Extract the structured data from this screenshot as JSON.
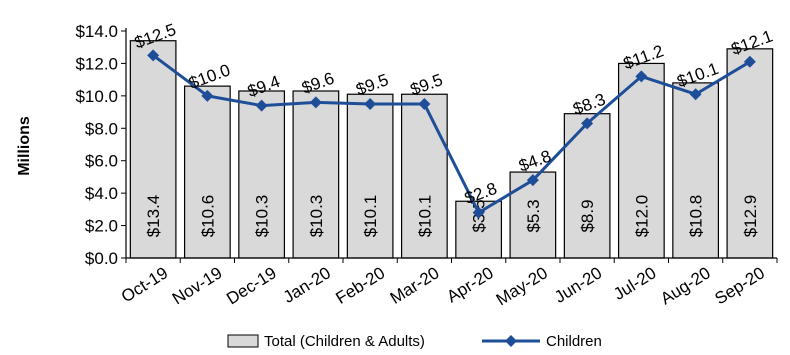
{
  "chart_data": {
    "type": "bar+line",
    "ylabel": "Millions",
    "ylim": [
      0,
      14
    ],
    "y_ticks": [
      "$0.0",
      "$2.0",
      "$4.0",
      "$6.0",
      "$8.0",
      "$10.0",
      "$12.0",
      "$14.0"
    ],
    "categories": [
      "Oct-19",
      "Nov-19",
      "Dec-19",
      "Jan-20",
      "Feb-20",
      "Mar-20",
      "Apr-20",
      "May-20",
      "Jun-20",
      "Jul-20",
      "Aug-20",
      "Sep-20"
    ],
    "series": [
      {
        "name": "Total (Children & Adults)",
        "type": "bar",
        "values": [
          13.4,
          10.6,
          10.3,
          10.3,
          10.1,
          10.1,
          3.5,
          5.3,
          8.9,
          12.0,
          10.8,
          12.9
        ],
        "labels": [
          "$13.4",
          "$10.6",
          "$10.3",
          "$10.3",
          "$10.1",
          "$10.1",
          "$3.5",
          "$5.3",
          "$8.9",
          "$12.0",
          "$10.8",
          "$12.9"
        ],
        "color": "#d9d9d9"
      },
      {
        "name": "Children",
        "type": "line",
        "values": [
          12.5,
          10.0,
          9.4,
          9.6,
          9.5,
          9.5,
          2.8,
          4.8,
          8.3,
          11.2,
          10.1,
          12.1
        ],
        "labels": [
          "$12.5",
          "$10.0",
          "$9.4",
          "$9.6",
          "$9.5",
          "$9.5",
          "$2.8",
          "$4.8",
          "$8.3",
          "$11.2",
          "$10.1",
          "$12.1"
        ],
        "color": "#1f4e99"
      }
    ],
    "legend_position": "bottom",
    "grid": false
  }
}
